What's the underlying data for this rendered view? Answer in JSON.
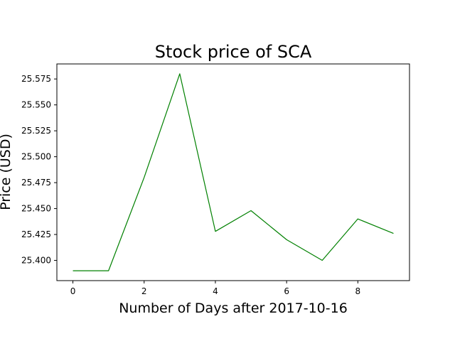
{
  "chart_data": {
    "type": "line",
    "title": "Stock price of SCA",
    "xlabel": "Number of Days after 2017-10-16",
    "ylabel": "Price (USD)",
    "x": [
      0,
      1,
      2,
      3,
      4,
      5,
      6,
      7,
      8,
      9
    ],
    "series": [
      {
        "values": [
          25.39,
          25.39,
          25.48,
          25.58,
          25.428,
          25.448,
          25.42,
          25.4,
          25.44,
          25.426
        ],
        "color": "#008000"
      }
    ],
    "xlim": [
      -0.45,
      9.45
    ],
    "ylim": [
      25.3805,
      25.5895
    ],
    "x_ticks": [
      0,
      2,
      4,
      6,
      8
    ],
    "x_tick_labels": [
      "0",
      "2",
      "4",
      "6",
      "8"
    ],
    "y_ticks": [
      25.4,
      25.425,
      25.45,
      25.475,
      25.5,
      25.525,
      25.55,
      25.575
    ],
    "y_tick_labels": [
      "25.400",
      "25.425",
      "25.450",
      "25.475",
      "25.500",
      "25.525",
      "25.550",
      "25.575"
    ],
    "grid": false,
    "legend": "none"
  }
}
